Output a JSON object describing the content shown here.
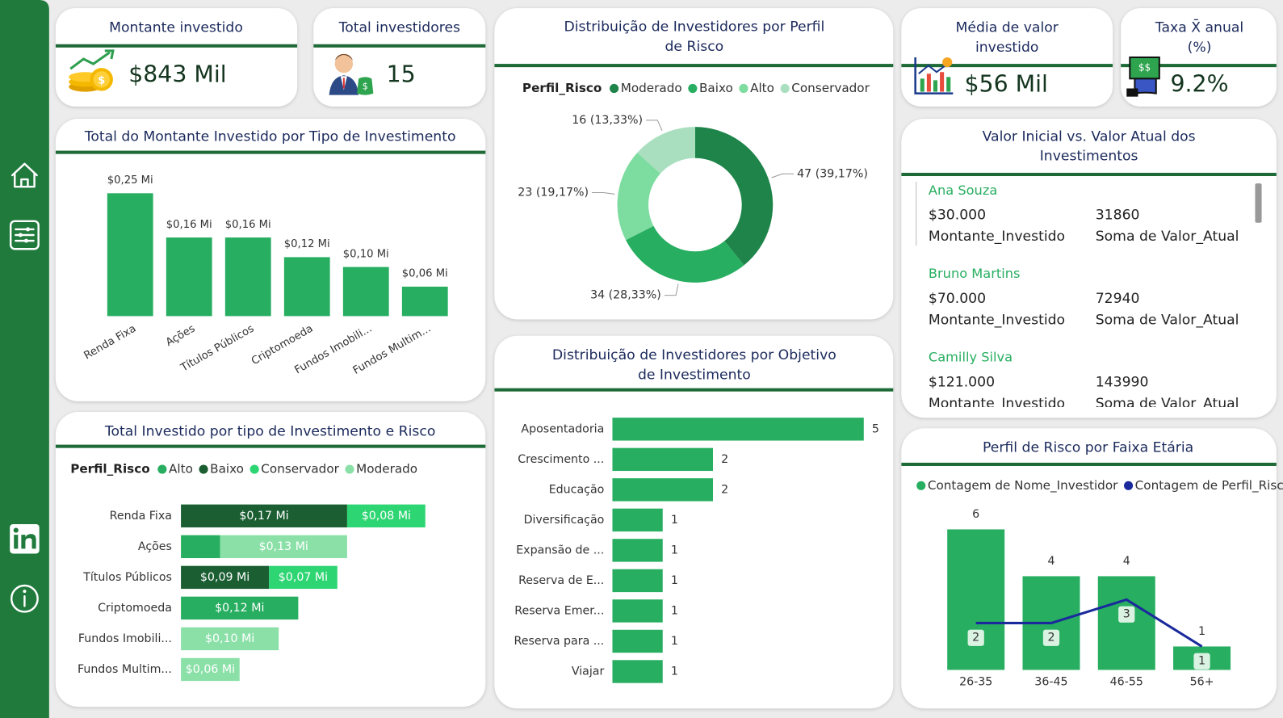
{
  "kpis": [
    {
      "title": "Montante investido",
      "value": "$843 Mil"
    },
    {
      "title": "Total investidores",
      "value": "15"
    },
    {
      "title": "Média de valor investido",
      "value": "$56 Mil"
    },
    {
      "title": "Taxa X̄ anual (%)",
      "value": "9.2%"
    }
  ],
  "chart_data": [
    {
      "type": "bar",
      "title": "Total do Montante Investido por Tipo de Investimento",
      "categories": [
        "Renda Fixa",
        "Ações",
        "Títulos Públicos",
        "Criptomoeda",
        "Fundos Imobili...",
        "Fundos Multim..."
      ],
      "values": [
        0.25,
        0.16,
        0.16,
        0.12,
        0.1,
        0.06
      ],
      "value_labels": [
        "$0,25 Mi",
        "$0,16 Mi",
        "$0,16 Mi",
        "$0,12 Mi",
        "$0,10 Mi",
        "$0,06 Mi"
      ],
      "color": "#27ae60"
    },
    {
      "type": "donut",
      "title": "Distribuição de Investidores por Perfil de Risco",
      "legend_title": "Perfil_Risco",
      "categories": [
        "Moderado",
        "Baixo",
        "Alto",
        "Conservador"
      ],
      "values": [
        47,
        34,
        23,
        16
      ],
      "value_labels": [
        "47 (39,17%)",
        "34 (28,33%)",
        "23 (19,17%)",
        "16 (13,33%)"
      ],
      "colors": [
        "#1e8449",
        "#27ae60",
        "#7ddc9f",
        "#a9dfbf"
      ]
    },
    {
      "type": "stacked",
      "title": "Total Investido por tipo de Investimento e Risco",
      "legend_title": "Perfil_Risco",
      "categories": [
        "Renda Fixa",
        "Ações",
        "Títulos Públicos",
        "Criptomoeda",
        "Fundos Imobili...",
        "Fundos Multim..."
      ],
      "series": [
        {
          "name": "Alto",
          "color": "#27ae60",
          "values": [
            null,
            0.04,
            null,
            0.12,
            null,
            null
          ],
          "value_labels": [
            null,
            null,
            null,
            "$0,12 Mi",
            null,
            null
          ]
        },
        {
          "name": "Baixo",
          "color": "#1a5e32",
          "values": [
            0.17,
            null,
            0.09,
            null,
            null,
            null
          ],
          "value_labels": [
            "$0,17 Mi",
            null,
            "$0,09 Mi",
            null,
            null,
            null
          ]
        },
        {
          "name": "Conservador",
          "color": "#2ed573",
          "values": [
            0.08,
            null,
            0.07,
            null,
            null,
            null
          ],
          "value_labels": [
            "$0,08 Mi",
            null,
            "$0,07 Mi",
            null,
            null,
            null
          ]
        },
        {
          "name": "Moderado",
          "color": "#8be0a8",
          "values": [
            null,
            0.13,
            null,
            null,
            0.1,
            0.06
          ],
          "value_labels": [
            null,
            "$0,13 Mi",
            null,
            null,
            "$0,10 Mi",
            "$0,06 Mi"
          ]
        }
      ]
    },
    {
      "type": "barh",
      "title": "Distribuição de Investidores por Objetivo de Investimento",
      "categories": [
        "Aposentadoria",
        "Crescimento ...",
        "Educação",
        "Diversificação",
        "Expansão de ...",
        "Reserva de E...",
        "Reserva Emer...",
        "Reserva para ...",
        "Viajar"
      ],
      "values": [
        5,
        2,
        2,
        1,
        1,
        1,
        1,
        1,
        1
      ],
      "color": "#27ae60"
    },
    {
      "type": "combo",
      "title": "Perfil de Risco por Faixa Etária",
      "categories": [
        "26-35",
        "36-45",
        "46-55",
        "56+"
      ],
      "series": [
        {
          "name": "Contagem de Nome_Investidor",
          "color": "#27ae60",
          "kind": "bar",
          "values": [
            6,
            4,
            4,
            1
          ]
        },
        {
          "name": "Contagem de Perfil_Risco",
          "color": "#1a2a9c",
          "kind": "line",
          "values": [
            2,
            2,
            3,
            1
          ]
        }
      ]
    }
  ],
  "table": {
    "title": "Valor Inicial vs. Valor Atual dos Investimentos",
    "rows": [
      {
        "name": "Ana Souza",
        "montante": "$30.000",
        "montante_label": "Montante_Investido",
        "valor_atual": 31860,
        "valor_atual_label": "Soma de Valor_Atual"
      },
      {
        "name": "Bruno Martins",
        "montante": "$70.000",
        "montante_label": "Montante_Investido",
        "valor_atual": 72940,
        "valor_atual_label": "Soma de Valor_Atual"
      },
      {
        "name": "Camilly Silva",
        "montante": "$121.000",
        "montante_label": "Montante_Investido",
        "valor_atual": 143990,
        "valor_atual_label": "Soma de Valor_Atual"
      }
    ]
  }
}
